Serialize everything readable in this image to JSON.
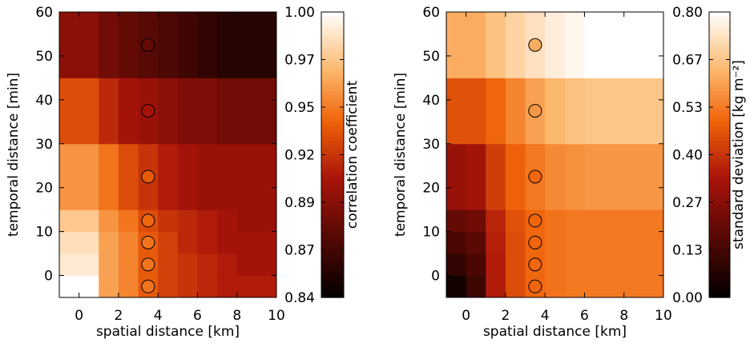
{
  "chart_data": [
    {
      "type": "heatmap",
      "xlabel": "spatial distance [km]",
      "ylabel": "temporal distance [min]",
      "x_ticks": [
        0,
        2,
        4,
        6,
        8,
        10
      ],
      "y_ticks": [
        0,
        10,
        20,
        30,
        40,
        50,
        60
      ],
      "xlim": [
        -1,
        10
      ],
      "ylim": [
        -5,
        60
      ],
      "x_edges": [
        -1,
        1,
        2,
        3,
        4,
        5,
        6,
        7,
        8,
        10
      ],
      "y_edges": [
        -5,
        0,
        5,
        10,
        15,
        30,
        45,
        60
      ],
      "values": [
        [
          1.0,
          0.96,
          0.95,
          0.935,
          0.925,
          0.92,
          0.915,
          0.91,
          0.91
        ],
        [
          0.99,
          0.96,
          0.95,
          0.935,
          0.925,
          0.92,
          0.915,
          0.91,
          0.905
        ],
        [
          0.985,
          0.96,
          0.95,
          0.935,
          0.925,
          0.915,
          0.91,
          0.905,
          0.905
        ],
        [
          0.975,
          0.955,
          0.945,
          0.93,
          0.92,
          0.915,
          0.91,
          0.905,
          0.9
        ],
        [
          0.955,
          0.945,
          0.93,
          0.92,
          0.91,
          0.905,
          0.9,
          0.9,
          0.9
        ],
        [
          0.93,
          0.915,
          0.905,
          0.9,
          0.895,
          0.89,
          0.89,
          0.885,
          0.885
        ],
        [
          0.895,
          0.885,
          0.88,
          0.875,
          0.87,
          0.865,
          0.86,
          0.855,
          0.855
        ]
      ],
      "points": [
        {
          "x": 3.5,
          "y": -2.5,
          "value": 0.945
        },
        {
          "x": 3.5,
          "y": 2.5,
          "value": 0.945
        },
        {
          "x": 3.5,
          "y": 7.5,
          "value": 0.945
        },
        {
          "x": 3.5,
          "y": 12.5,
          "value": 0.94
        },
        {
          "x": 3.5,
          "y": 22.5,
          "value": 0.935
        },
        {
          "x": 3.5,
          "y": 37.5,
          "value": 0.905
        },
        {
          "x": 3.5,
          "y": 52.5,
          "value": 0.88
        }
      ],
      "colorbar": {
        "label": "correlation coefficient",
        "range": [
          0.84,
          1.0
        ],
        "ticks": [
          "0.84",
          "0.87",
          "0.89",
          "0.92",
          "0.95",
          "0.97",
          "1.00"
        ]
      }
    },
    {
      "type": "heatmap",
      "xlabel": "spatial distance [km]",
      "ylabel": "temporal distance [min]",
      "x_ticks": [
        0,
        2,
        4,
        6,
        8,
        10
      ],
      "y_ticks": [
        0,
        10,
        20,
        30,
        40,
        50,
        60
      ],
      "xlim": [
        -1,
        10
      ],
      "ylim": [
        -5,
        60
      ],
      "x_edges": [
        -1,
        0,
        1,
        2,
        3,
        4,
        5,
        6,
        7,
        8,
        10
      ],
      "y_edges": [
        -5,
        0,
        5,
        10,
        15,
        30,
        45,
        60
      ],
      "values": [
        [
          0.04,
          0.12,
          0.35,
          0.45,
          0.5,
          0.52,
          0.53,
          0.53,
          0.53,
          0.53
        ],
        [
          0.1,
          0.15,
          0.35,
          0.45,
          0.5,
          0.52,
          0.53,
          0.53,
          0.53,
          0.53
        ],
        [
          0.15,
          0.18,
          0.36,
          0.45,
          0.5,
          0.52,
          0.53,
          0.53,
          0.53,
          0.53
        ],
        [
          0.2,
          0.22,
          0.37,
          0.46,
          0.5,
          0.52,
          0.53,
          0.53,
          0.53,
          0.53
        ],
        [
          0.3,
          0.32,
          0.42,
          0.49,
          0.53,
          0.56,
          0.57,
          0.58,
          0.58,
          0.58
        ],
        [
          0.46,
          0.46,
          0.5,
          0.55,
          0.6,
          0.64,
          0.66,
          0.67,
          0.67,
          0.67
        ],
        [
          0.62,
          0.62,
          0.66,
          0.7,
          0.73,
          0.76,
          0.78,
          0.8,
          0.8,
          0.8
        ]
      ],
      "points": [
        {
          "x": 3.5,
          "y": -2.5,
          "value": 0.5
        },
        {
          "x": 3.5,
          "y": 2.5,
          "value": 0.5
        },
        {
          "x": 3.5,
          "y": 7.5,
          "value": 0.5
        },
        {
          "x": 3.5,
          "y": 12.5,
          "value": 0.5
        },
        {
          "x": 3.5,
          "y": 22.5,
          "value": 0.5
        },
        {
          "x": 3.5,
          "y": 37.5,
          "value": 0.58
        },
        {
          "x": 3.5,
          "y": 52.5,
          "value": 0.62
        }
      ],
      "colorbar": {
        "label": "standard deviation [kg m⁻²]",
        "range": [
          0.0,
          0.8
        ],
        "ticks": [
          "0.00",
          "0.13",
          "0.27",
          "0.40",
          "0.53",
          "0.67",
          "0.80"
        ]
      }
    }
  ]
}
